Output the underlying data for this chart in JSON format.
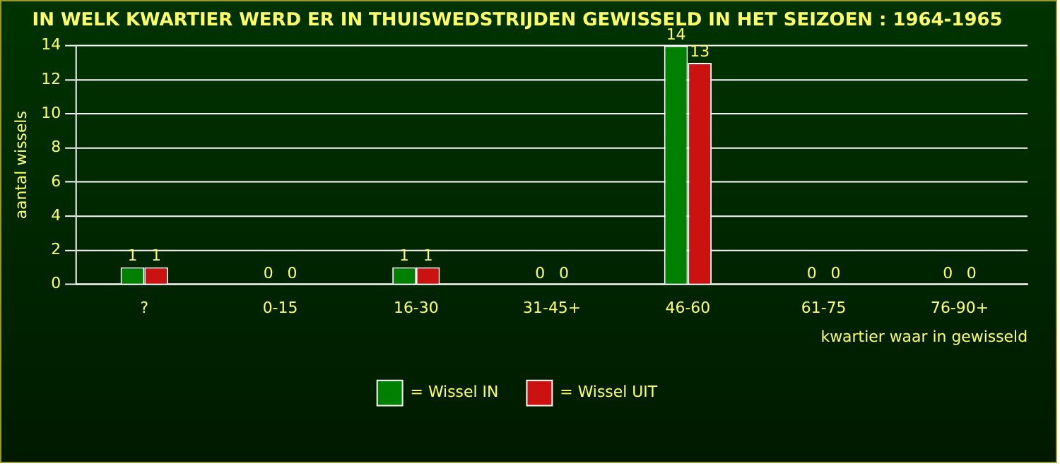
{
  "chart_data": {
    "type": "bar",
    "title": "IN WELK KWARTIER WERD ER IN THUISWEDSTRIJDEN GEWISSELD IN HET SEIZOEN : 1964-1965",
    "ylabel": "aantal wissels",
    "xlabel": "kwartier waar in gewisseld",
    "categories": [
      "?",
      "0-15",
      "16-30",
      "31-45+",
      "46-60",
      "61-75",
      "76-90+"
    ],
    "series": [
      {
        "name": "= Wissel IN",
        "color": "#008000",
        "values": [
          1,
          0,
          1,
          0,
          14,
          0,
          0
        ]
      },
      {
        "name": "= Wissel UIT",
        "color": "#cc1111",
        "values": [
          1,
          0,
          1,
          0,
          13,
          0,
          0
        ]
      }
    ],
    "ylim": [
      0,
      14
    ],
    "yticks": [
      0,
      2,
      4,
      6,
      8,
      10,
      12,
      14
    ],
    "grid": "y",
    "legend": "bottom",
    "data_labels": true
  }
}
